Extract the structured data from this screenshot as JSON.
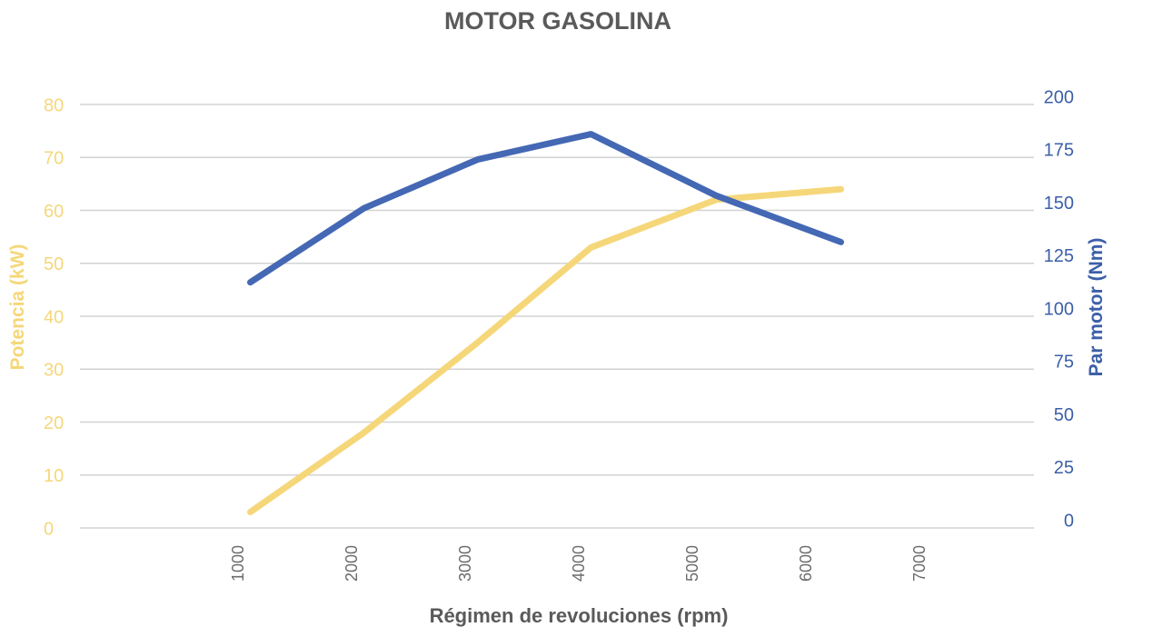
{
  "chart_data": {
    "type": "line",
    "title": "MOTOR GASOLINA",
    "xlabel": "Régimen de revoluciones (rpm)",
    "ylabel_left": "Potencia (kW)",
    "ylabel_right": "Par motor (Nm)",
    "x_categories": [
      "1000",
      "2000",
      "3000",
      "4000",
      "5000",
      "6000",
      "7000"
    ],
    "y_left_ticks": [
      "0",
      "10",
      "20",
      "30",
      "40",
      "50",
      "60",
      "70",
      "80"
    ],
    "y_right_ticks": [
      "0",
      "25",
      "50",
      "75",
      "100",
      "125",
      "150",
      "175",
      "200"
    ],
    "y_left_range": [
      0,
      80
    ],
    "y_right_range": [
      0,
      200
    ],
    "x_range": [
      0,
      8000
    ],
    "grid": true,
    "series": [
      {
        "axis": "left",
        "color": "#f5d77a",
        "points": [
          [
            1100,
            3
          ],
          [
            2100,
            18
          ],
          [
            3100,
            35
          ],
          [
            4100,
            53
          ],
          [
            5200,
            62
          ],
          [
            6300,
            64
          ]
        ]
      },
      {
        "axis": "right",
        "color": "#4468b4",
        "points": [
          [
            1100,
            116
          ],
          [
            2100,
            151
          ],
          [
            3100,
            174
          ],
          [
            4100,
            186
          ],
          [
            5200,
            157
          ],
          [
            6300,
            135
          ]
        ]
      }
    ]
  }
}
